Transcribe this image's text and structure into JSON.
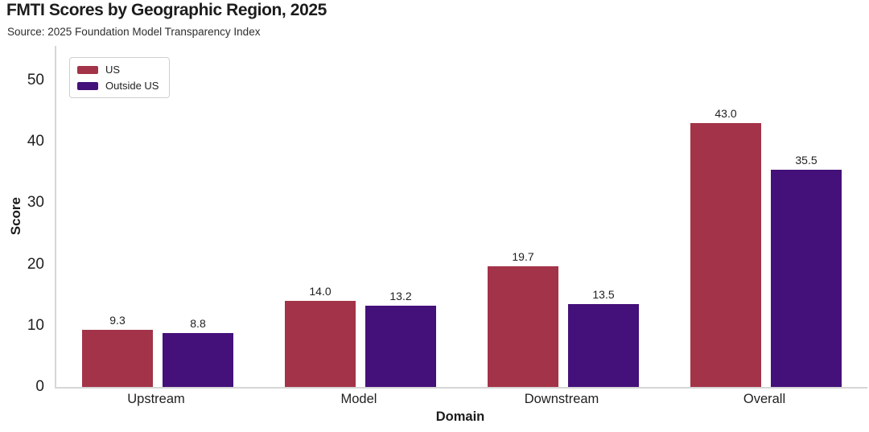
{
  "header": {
    "title": "FMTI Scores by Geographic Region, 2025",
    "subtitle": "Source: 2025 Foundation Model Transparency Index"
  },
  "chart_data": {
    "type": "bar",
    "title": "FMTI Scores by Geographic Region, 2025",
    "source_note": "Source: 2025 Foundation Model Transparency Index",
    "categories": [
      "Upstream",
      "Model",
      "Downstream",
      "Overall"
    ],
    "series": [
      {
        "name": "US",
        "color": "#a33348",
        "values": [
          9.3,
          14.0,
          19.7,
          43.0
        ]
      },
      {
        "name": "Outside US",
        "color": "#44107a",
        "values": [
          8.8,
          13.2,
          13.5,
          35.5
        ]
      }
    ],
    "xlabel": "Domain",
    "ylabel": "Score",
    "ylim": [
      0,
      50
    ],
    "yticks": [
      0,
      10,
      20,
      30,
      40,
      50
    ],
    "grid": false,
    "legend_position": "upper-left",
    "value_label_decimals": 1,
    "colors": {
      "spine": "#d6d6d6",
      "text": "#1f1f1f",
      "background": "#ffffff"
    }
  }
}
